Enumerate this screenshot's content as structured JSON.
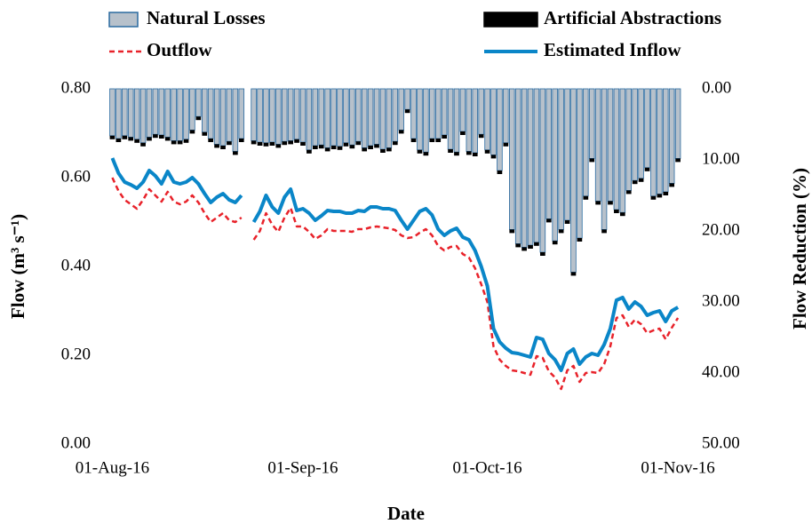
{
  "chart_data": {
    "type": "combo",
    "xlabel": "Date",
    "ylabel": "Flow (m³ s⁻¹)",
    "y2label": "Flow Reduction (%)",
    "x": [
      "01-Aug-16",
      "02-Aug-16",
      "03-Aug-16",
      "04-Aug-16",
      "05-Aug-16",
      "06-Aug-16",
      "07-Aug-16",
      "08-Aug-16",
      "09-Aug-16",
      "10-Aug-16",
      "11-Aug-16",
      "12-Aug-16",
      "13-Aug-16",
      "14-Aug-16",
      "15-Aug-16",
      "16-Aug-16",
      "17-Aug-16",
      "18-Aug-16",
      "19-Aug-16",
      "20-Aug-16",
      "21-Aug-16",
      "22-Aug-16",
      "23-Aug-16",
      "24-Aug-16",
      "25-Aug-16",
      "26-Aug-16",
      "27-Aug-16",
      "28-Aug-16",
      "29-Aug-16",
      "30-Aug-16",
      "31-Aug-16",
      "01-Sep-16",
      "02-Sep-16",
      "03-Sep-16",
      "04-Sep-16",
      "05-Sep-16",
      "06-Sep-16",
      "07-Sep-16",
      "08-Sep-16",
      "09-Sep-16",
      "10-Sep-16",
      "11-Sep-16",
      "12-Sep-16",
      "13-Sep-16",
      "14-Sep-16",
      "15-Sep-16",
      "16-Sep-16",
      "17-Sep-16",
      "18-Sep-16",
      "19-Sep-16",
      "20-Sep-16",
      "21-Sep-16",
      "22-Sep-16",
      "23-Sep-16",
      "24-Sep-16",
      "25-Sep-16",
      "26-Sep-16",
      "27-Sep-16",
      "28-Sep-16",
      "29-Sep-16",
      "30-Sep-16",
      "01-Oct-16",
      "02-Oct-16",
      "03-Oct-16",
      "04-Oct-16",
      "05-Oct-16",
      "06-Oct-16",
      "07-Oct-16",
      "08-Oct-16",
      "09-Oct-16",
      "10-Oct-16",
      "11-Oct-16",
      "12-Oct-16",
      "13-Oct-16",
      "14-Oct-16",
      "15-Oct-16",
      "16-Oct-16",
      "17-Oct-16",
      "18-Oct-16",
      "19-Oct-16",
      "20-Oct-16",
      "21-Oct-16",
      "22-Oct-16",
      "23-Oct-16",
      "24-Oct-16",
      "25-Oct-16",
      "26-Oct-16",
      "27-Oct-16",
      "28-Oct-16",
      "29-Oct-16",
      "30-Oct-16",
      "31-Oct-16",
      "01-Nov-16"
    ],
    "xticks": [
      "01-Aug-16",
      "01-Sep-16",
      "01-Oct-16",
      "01-Nov-16"
    ],
    "ylim": [
      0,
      0.8
    ],
    "yticks": [
      {
        "value": 0,
        "label": "0.00"
      },
      {
        "value": 0.2,
        "label": "0.20"
      },
      {
        "value": 0.4,
        "label": "0.40"
      },
      {
        "value": 0.6,
        "label": "0.60"
      },
      {
        "value": 0.8,
        "label": "0.80"
      }
    ],
    "y2lim": [
      50,
      0
    ],
    "y2ticks": [
      {
        "value": 0,
        "label": "0.00"
      },
      {
        "value": 10,
        "label": "10.00"
      },
      {
        "value": 20,
        "label": "20.00"
      },
      {
        "value": 30,
        "label": "30.00"
      },
      {
        "value": 40,
        "label": "40.00"
      },
      {
        "value": 50,
        "label": "50.00"
      }
    ],
    "series": [
      {
        "name": "Natural Losses",
        "type": "bar",
        "axis": "y2",
        "color": "#b7c1cb",
        "edge": "#2a6aa0",
        "values": [
          6.6,
          7.0,
          6.6,
          6.8,
          7.1,
          7.6,
          6.8,
          6.4,
          6.5,
          6.8,
          7.3,
          7.3,
          7.1,
          5.8,
          3.9,
          6.1,
          7.0,
          7.8,
          8.0,
          7.4,
          8.8,
          7.0,
          null,
          7.3,
          7.5,
          7.6,
          7.5,
          7.8,
          7.4,
          7.3,
          7.1,
          7.5,
          8.6,
          8.0,
          7.9,
          8.3,
          8.0,
          8.1,
          7.6,
          7.9,
          7.4,
          8.3,
          8.0,
          7.8,
          8.5,
          8.3,
          7.4,
          5.8,
          2.9,
          7.0,
          8.6,
          8.9,
          7.0,
          7.0,
          6.5,
          8.5,
          8.9,
          6.0,
          8.8,
          9.0,
          6.4,
          8.6,
          9.3,
          11.5,
          7.6,
          19.8,
          21.8,
          22.3,
          22.0,
          21.6,
          23.0,
          18.3,
          21.4,
          19.8,
          18.5,
          25.8,
          21.0,
          15.1,
          9.8,
          15.8,
          19.8,
          15.8,
          17.0,
          17.4,
          14.3,
          12.9,
          12.6,
          11.1,
          15.1,
          14.8,
          14.5,
          13.3,
          9.8
        ]
      },
      {
        "name": "Artificial Abstractions",
        "type": "bar",
        "axis": "y2",
        "color": "#000000",
        "values": [
          0.5,
          0.5,
          0.5,
          0.5,
          0.5,
          0.5,
          0.5,
          0.5,
          0.5,
          0.5,
          0.5,
          0.5,
          0.5,
          0.5,
          0.5,
          0.5,
          0.5,
          0.5,
          0.5,
          0.5,
          0.5,
          0.5,
          null,
          0.5,
          0.5,
          0.5,
          0.5,
          0.5,
          0.5,
          0.5,
          0.5,
          0.5,
          0.5,
          0.5,
          0.5,
          0.5,
          0.5,
          0.5,
          0.5,
          0.5,
          0.5,
          0.5,
          0.5,
          0.5,
          0.5,
          0.5,
          0.5,
          0.5,
          0.5,
          0.5,
          0.5,
          0.5,
          0.5,
          0.5,
          0.5,
          0.5,
          0.5,
          0.5,
          0.5,
          0.5,
          0.5,
          0.5,
          0.5,
          0.5,
          0.5,
          0.5,
          0.5,
          0.5,
          0.5,
          0.5,
          0.5,
          0.5,
          0.5,
          0.5,
          0.5,
          0.5,
          0.5,
          0.5,
          0.5,
          0.5,
          0.5,
          0.5,
          0.5,
          0.5,
          0.5,
          0.5,
          0.5,
          0.5,
          0.5,
          0.5,
          0.5,
          0.5,
          0.5
        ]
      },
      {
        "name": "Outflow",
        "type": "line",
        "dashed": true,
        "color": "#e8222a",
        "values": [
          0.6,
          0.57,
          0.55,
          0.54,
          0.53,
          0.55,
          0.574,
          0.56,
          0.546,
          0.568,
          0.546,
          0.54,
          0.546,
          0.56,
          0.544,
          0.52,
          0.5,
          0.51,
          0.52,
          0.504,
          0.5,
          0.51,
          null,
          0.46,
          0.48,
          0.52,
          0.494,
          0.478,
          0.51,
          0.532,
          0.49,
          0.49,
          0.478,
          0.462,
          0.47,
          0.484,
          0.48,
          0.48,
          0.48,
          0.478,
          0.484,
          0.484,
          0.488,
          0.49,
          0.488,
          0.486,
          0.482,
          0.47,
          0.464,
          0.466,
          0.476,
          0.484,
          0.47,
          0.446,
          0.436,
          0.444,
          0.446,
          0.428,
          0.42,
          0.396,
          0.36,
          0.32,
          0.22,
          0.19,
          0.176,
          0.166,
          0.164,
          0.16,
          0.156,
          0.198,
          0.194,
          0.164,
          0.15,
          0.124,
          0.166,
          0.176,
          0.14,
          0.16,
          0.162,
          0.16,
          0.18,
          0.22,
          0.284,
          0.29,
          0.264,
          0.28,
          0.27,
          0.25,
          0.256,
          0.26,
          0.236,
          0.262,
          0.284
        ]
      },
      {
        "name": "Estimated Inflow",
        "type": "line",
        "dashed": false,
        "color": "#0a86c8",
        "values": [
          0.644,
          0.61,
          0.59,
          0.584,
          0.576,
          0.59,
          0.616,
          0.604,
          0.586,
          0.614,
          0.59,
          0.586,
          0.59,
          0.6,
          0.586,
          0.564,
          0.544,
          0.556,
          0.564,
          0.55,
          0.544,
          0.56,
          null,
          0.5,
          0.524,
          0.56,
          0.534,
          0.52,
          0.556,
          0.574,
          0.526,
          0.53,
          0.52,
          0.504,
          0.514,
          0.526,
          0.524,
          0.524,
          0.52,
          0.52,
          0.526,
          0.524,
          0.534,
          0.534,
          0.53,
          0.53,
          0.526,
          0.504,
          0.484,
          0.504,
          0.524,
          0.53,
          0.516,
          0.484,
          0.47,
          0.48,
          0.486,
          0.466,
          0.46,
          0.436,
          0.4,
          0.356,
          0.26,
          0.23,
          0.216,
          0.206,
          0.204,
          0.2,
          0.196,
          0.24,
          0.236,
          0.204,
          0.19,
          0.166,
          0.204,
          0.214,
          0.18,
          0.196,
          0.204,
          0.2,
          0.224,
          0.26,
          0.324,
          0.33,
          0.304,
          0.32,
          0.31,
          0.29,
          0.296,
          0.3,
          0.276,
          0.3,
          0.308
        ]
      }
    ]
  }
}
